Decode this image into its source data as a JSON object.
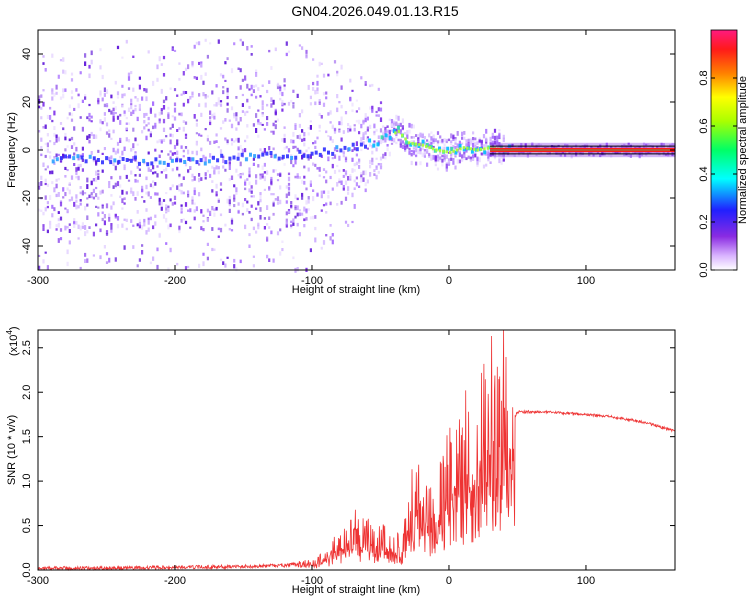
{
  "title": "GN04.2026.049.01.13.R15",
  "colors": {
    "snr_line": "#ee3333",
    "axis": "#000000",
    "colormap": [
      "#ffffff",
      "#8a2be2",
      "#0000ff",
      "#00ffff",
      "#00ff00",
      "#ffff00",
      "#ff8000",
      "#ff0000",
      "#ff0080"
    ]
  },
  "chart_data": [
    {
      "type": "heatmap",
      "xlabel": "Height of straight line (km)",
      "ylabel": "Frequency (Hz)",
      "xlim": [
        -300,
        165
      ],
      "ylim": [
        -50,
        50
      ],
      "xticks": [
        "-300",
        "-200",
        "-100",
        "0",
        "100"
      ],
      "yticks": [
        "-40",
        "-20",
        "0",
        "20",
        "40"
      ],
      "colorbar": {
        "label": "Normalized spectral amplitude",
        "range": [
          0,
          1
        ],
        "ticks": [
          "0.0",
          "0.2",
          "0.4",
          "0.6",
          "0.8"
        ]
      },
      "ridge": {
        "x": [
          -300,
          -250,
          -200,
          -150,
          -100,
          -70,
          -45,
          -38,
          -30,
          -20,
          -10,
          0,
          10,
          20,
          30,
          40,
          50,
          100,
          165
        ],
        "y": [
          -4,
          -4,
          -5,
          -3,
          -2,
          1,
          5,
          8,
          3,
          2,
          0,
          -1,
          1,
          0,
          1,
          0,
          0,
          0,
          0
        ]
      }
    },
    {
      "type": "line",
      "xlabel": "Height of straight line (km)",
      "ylabel": "SNR (10 * v/v)",
      "y_multiplier": "(x10",
      "y_multiplier_exp": "4",
      "xlim": [
        -300,
        165
      ],
      "ylim": [
        0,
        2.7
      ],
      "xticks": [
        "-300",
        "-200",
        "-100",
        "0",
        "100"
      ],
      "yticks": [
        "0.0",
        "0.5",
        "1.0",
        "1.5",
        "2.0",
        "2.5"
      ],
      "series": [
        {
          "x": [
            -300,
            -250,
            -200,
            -150,
            -120,
            -100,
            -90,
            -80,
            -70,
            -60,
            -50,
            -40,
            -35,
            -30,
            -25,
            -20,
            -15,
            -10,
            -5,
            0,
            5,
            10,
            15,
            20,
            25,
            30,
            35,
            40,
            45,
            48,
            50,
            60,
            80,
            100,
            120,
            140,
            150,
            165
          ],
          "y": [
            0.02,
            0.02,
            0.03,
            0.04,
            0.05,
            0.08,
            0.15,
            0.3,
            0.45,
            0.4,
            0.35,
            0.3,
            0.25,
            0.5,
            0.9,
            0.8,
            0.7,
            0.6,
            0.9,
            1.1,
            1.2,
            1.3,
            1.4,
            1.5,
            1.6,
            1.7,
            1.75,
            1.8,
            1.75,
            1.72,
            1.78,
            1.78,
            1.77,
            1.75,
            1.72,
            1.67,
            1.63,
            1.56
          ]
        }
      ]
    }
  ]
}
